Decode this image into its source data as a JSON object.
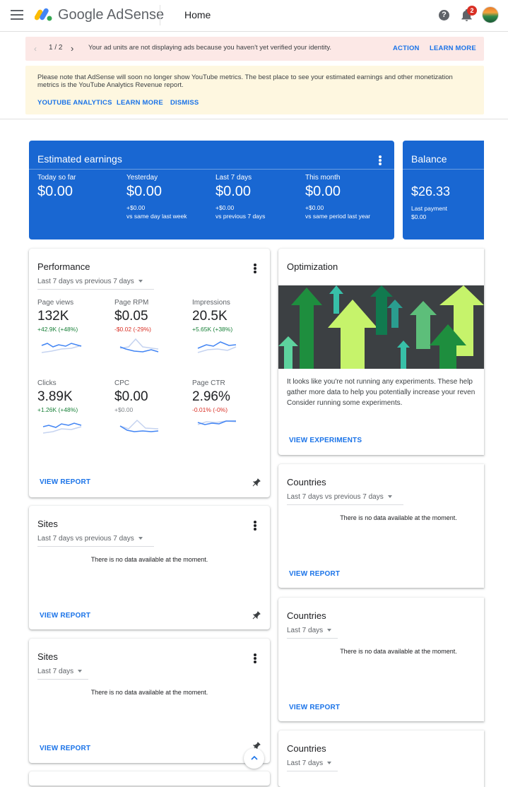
{
  "header": {
    "brand_google": "Google",
    "brand_product": "AdSense",
    "page_title": "Home",
    "notification_count": "2",
    "help_glyph": "?"
  },
  "banner_alert": {
    "pager": "1 / 2",
    "message": "Your ad units are not displaying ads because you haven't yet verified your identity.",
    "action_label": "ACTION",
    "learn_more_label": "LEARN MORE"
  },
  "banner_notice": {
    "message": "Please note that AdSense will soon no longer show YouTube metrics. The best place to see your estimated earnings and other monetization metrics is the YouTube Analytics Revenue report.",
    "youtube_analytics_label": "YOUTUBE ANALYTICS",
    "learn_more_label": "LEARN MORE",
    "dismiss_label": "DISMISS"
  },
  "earnings": {
    "title": "Estimated earnings",
    "metrics": [
      {
        "label": "Today so far",
        "value": "$0.00",
        "delta": "",
        "compare": ""
      },
      {
        "label": "Yesterday",
        "value": "$0.00",
        "delta": "+$0.00",
        "compare": "vs same day last week"
      },
      {
        "label": "Last 7 days",
        "value": "$0.00",
        "delta": "+$0.00",
        "compare": "vs previous 7 days"
      },
      {
        "label": "This month",
        "value": "$0.00",
        "delta": "+$0.00",
        "compare": "vs same period last year"
      }
    ]
  },
  "balance": {
    "title": "Balance",
    "value": "$26.33",
    "last_payment_label": "Last payment",
    "last_payment_value": "$0.00"
  },
  "performance": {
    "title": "Performance",
    "period": "Last 7 days vs previous 7 days",
    "metrics": [
      {
        "label": "Page views",
        "value": "132K",
        "change": "+42.9K (+48%)"
      },
      {
        "label": "Page RPM",
        "value": "$0.05",
        "change": "-$0.02 (-29%)"
      },
      {
        "label": "Impressions",
        "value": "20.5K",
        "change": "+5.65K (+38%)"
      },
      {
        "label": "Clicks",
        "value": "3.89K",
        "change": "+1.26K (+48%)"
      },
      {
        "label": "CPC",
        "value": "$0.00",
        "change": "+$0.00"
      },
      {
        "label": "Page CTR",
        "value": "2.96%",
        "change": "-0.01% (-0%)"
      }
    ],
    "view_report": "VIEW REPORT"
  },
  "optimization": {
    "title": "Optimization",
    "text_lines": [
      "It looks like you're not running any experiments. These help",
      "gather more data to help you potentially increase your reven",
      "Consider running some experiments."
    ],
    "view_label": "VIEW EXPERIMENTS"
  },
  "sites_1": {
    "title": "Sites",
    "period": "Last 7 days vs previous 7 days",
    "nodata": "There is no data available at the moment.",
    "view_report": "VIEW REPORT"
  },
  "sites_2": {
    "title": "Sites",
    "period": "Last 7 days",
    "nodata": "There is no data available at the moment.",
    "view_report": "VIEW REPORT"
  },
  "countries_1": {
    "title": "Countries",
    "period": "Last 7 days vs previous 7 days",
    "nodata": "There is no data available at the moment.",
    "view_report": "VIEW REPORT"
  },
  "countries_2": {
    "title": "Countries",
    "period": "Last 7 days",
    "nodata": "There is no data available at the moment.",
    "view_report": "VIEW REPORT"
  },
  "countries_3": {
    "title": "Countries",
    "period": "Last 7 days"
  },
  "colors": {
    "accent": "#1a73e8",
    "earnings_card": "#1967d2",
    "positive": "#188038",
    "negative": "#d93025",
    "alert_bg": "#fce8e6",
    "notice_bg": "#fef7e0"
  }
}
